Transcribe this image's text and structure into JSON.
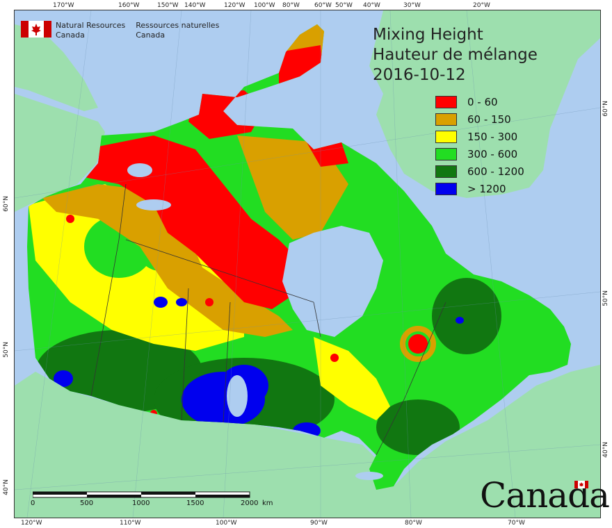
{
  "header": {
    "agency_en": [
      "Natural Resources",
      "Canada"
    ],
    "agency_fr": [
      "Ressources naturelles",
      "Canada"
    ]
  },
  "title": {
    "line1": "Mixing Height",
    "line2": "Hauteur de mélange",
    "date": "2016-10-12"
  },
  "legend": [
    {
      "label": "0 - 60",
      "color": "#ff0000"
    },
    {
      "label": "60 - 150",
      "color": "#d9a000"
    },
    {
      "label": "150 - 300",
      "color": "#ffff00"
    },
    {
      "label": "300 - 600",
      "color": "#22dd22"
    },
    {
      "label": "600 - 1200",
      "color": "#117711"
    },
    {
      "label": "> 1200",
      "color": "#0000ee"
    }
  ],
  "top_ticks": [
    "170°W",
    "160°W",
    "150°W",
    "140°W",
    "120°W",
    "100°W",
    "80°W",
    "60°W",
    "50°W",
    "40°W",
    "30°W",
    "20°W"
  ],
  "bottom_ticks": [
    "120°W",
    "110°W",
    "100°W",
    "90°W",
    "80°W",
    "70°W"
  ],
  "left_ticks": [
    "60°N",
    "50°N",
    "40°N"
  ],
  "right_ticks": [
    "60°N",
    "50°N",
    "40°N"
  ],
  "scale_bar": {
    "labels": [
      "0",
      "500",
      "1000",
      "1500",
      "2000"
    ],
    "unit": "km"
  },
  "wordmark": "Canada",
  "colors": {
    "ocean": "#aecdf0",
    "land_other": "#9ddfae",
    "border": "#333333"
  }
}
